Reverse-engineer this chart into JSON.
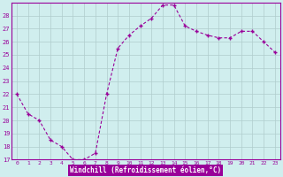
{
  "x": [
    0,
    1,
    2,
    3,
    4,
    5,
    6,
    7,
    8,
    9,
    10,
    11,
    12,
    13,
    14,
    15,
    16,
    17,
    18,
    19,
    20,
    21,
    22,
    23
  ],
  "y": [
    22,
    20.5,
    20,
    18.5,
    18,
    17,
    17,
    17.5,
    22,
    25.5,
    26.5,
    27.2,
    27.8,
    28.8,
    28.8,
    27.2,
    26.8,
    26.5,
    26.3,
    26.3,
    26.8,
    26.8,
    26,
    25.2
  ],
  "line_color": "#990099",
  "background_color": "#d0eeee",
  "grid_color": "#b0cccc",
  "xlabel": "Windchill (Refroidissement éolien,°C)",
  "xlabel_color": "#ffffff",
  "xlabel_bg": "#990099",
  "ylim": [
    17,
    29
  ],
  "xlim": [
    -0.5,
    23.5
  ],
  "yticks": [
    17,
    18,
    19,
    20,
    21,
    22,
    23,
    24,
    25,
    26,
    27,
    28
  ],
  "xticks": [
    0,
    1,
    2,
    3,
    4,
    5,
    6,
    7,
    8,
    9,
    10,
    11,
    12,
    13,
    14,
    15,
    16,
    17,
    18,
    19,
    20,
    21,
    22,
    23
  ],
  "tick_label_color": "#990099",
  "figsize": [
    3.2,
    2.0
  ],
  "dpi": 100
}
